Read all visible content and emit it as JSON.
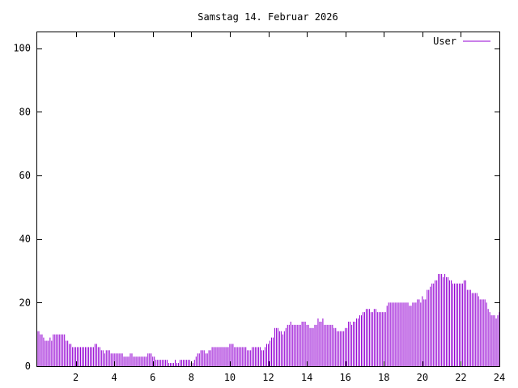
{
  "chart_data": {
    "type": "bar",
    "title": "Samstag 14. Februar 2026",
    "xlabel": "",
    "ylabel": "",
    "xlim": [
      0,
      24
    ],
    "ylim": [
      0,
      105
    ],
    "x_ticks": [
      2,
      4,
      6,
      8,
      10,
      12,
      14,
      16,
      18,
      20,
      22,
      24
    ],
    "y_ticks": [
      0,
      20,
      40,
      60,
      80,
      100
    ],
    "grid": false,
    "legend_position": "top-right",
    "colors": {
      "series": "#9400d3",
      "axis": "#000000",
      "background": "#ffffff"
    },
    "series": [
      {
        "name": "User",
        "points_per_hour": 12,
        "values": [
          11,
          11,
          10,
          10,
          9,
          8,
          8,
          8,
          9,
          8,
          10,
          10,
          10,
          10,
          10,
          10,
          10,
          10,
          8,
          8,
          7,
          7,
          6,
          6,
          6,
          6,
          6,
          6,
          6,
          6,
          6,
          6,
          6,
          6,
          6,
          6,
          7,
          7,
          6,
          6,
          5,
          5,
          4,
          5,
          5,
          5,
          4,
          4,
          4,
          4,
          4,
          4,
          4,
          4,
          3,
          3,
          3,
          3,
          4,
          4,
          3,
          3,
          3,
          3,
          3,
          3,
          3,
          3,
          3,
          4,
          4,
          4,
          3,
          3,
          2,
          2,
          2,
          2,
          2,
          2,
          2,
          2,
          1,
          1,
          1,
          1,
          2,
          1,
          1,
          2,
          2,
          2,
          2,
          2,
          2,
          2,
          1,
          1,
          2,
          3,
          4,
          4,
          5,
          5,
          5,
          4,
          4,
          5,
          5,
          6,
          6,
          6,
          6,
          6,
          6,
          6,
          6,
          6,
          6,
          6,
          7,
          7,
          7,
          6,
          6,
          6,
          6,
          6,
          6,
          6,
          6,
          5,
          5,
          5,
          6,
          6,
          6,
          6,
          6,
          6,
          5,
          5,
          6,
          7,
          7,
          8,
          9,
          9,
          12,
          12,
          12,
          11,
          11,
          10,
          11,
          12,
          13,
          13,
          14,
          13,
          13,
          13,
          13,
          13,
          13,
          14,
          14,
          14,
          13,
          13,
          12,
          12,
          12,
          13,
          13,
          15,
          14,
          14,
          15,
          13,
          13,
          13,
          13,
          13,
          13,
          12,
          12,
          11,
          11,
          11,
          11,
          11,
          12,
          12,
          14,
          14,
          13,
          14,
          14,
          15,
          15,
          16,
          16,
          17,
          17,
          18,
          18,
          18,
          17,
          17,
          18,
          18,
          17,
          17,
          17,
          17,
          17,
          17,
          19,
          20,
          20,
          20,
          20,
          20,
          20,
          20,
          20,
          20,
          20,
          20,
          20,
          20,
          19,
          19,
          20,
          20,
          20,
          21,
          21,
          20,
          22,
          21,
          21,
          24,
          24,
          25,
          26,
          26,
          27,
          27,
          29,
          29,
          29,
          28,
          29,
          28,
          28,
          27,
          27,
          26,
          26,
          26,
          26,
          26,
          26,
          26,
          27,
          27,
          24,
          24,
          24,
          23,
          23,
          23,
          23,
          22,
          21,
          21,
          21,
          21,
          20,
          18,
          17,
          16,
          16,
          16,
          15,
          16,
          17
        ]
      }
    ]
  }
}
